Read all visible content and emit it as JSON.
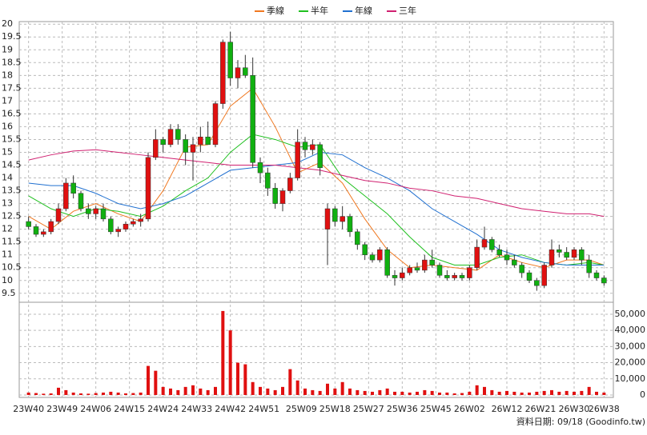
{
  "chart_data": [
    {
      "type": "candlestick",
      "x": [
        0,
        2,
        4,
        6,
        8,
        10,
        12,
        14,
        16,
        18,
        20,
        22,
        24,
        26,
        28,
        30,
        32,
        34,
        36,
        38,
        40,
        42,
        44,
        46,
        48,
        50,
        52,
        54,
        56,
        58,
        60,
        62,
        64,
        66,
        68,
        70,
        72,
        74,
        76,
        78,
        80,
        82,
        84,
        86,
        88,
        90,
        92,
        94,
        96,
        98,
        100,
        102,
        104,
        106,
        108,
        110,
        112,
        114,
        116,
        118,
        120,
        122,
        124,
        126,
        128,
        130,
        132,
        134,
        136,
        138,
        140,
        142,
        144,
        146,
        148,
        150,
        152,
        154
      ],
      "open": [
        12.3,
        12.1,
        11.8,
        11.9,
        12.3,
        12.8,
        13.8,
        13.4,
        12.8,
        12.6,
        12.8,
        12.4,
        11.9,
        12.0,
        12.2,
        12.3,
        12.4,
        14.8,
        15.5,
        15.3,
        15.9,
        15.5,
        15.0,
        15.3,
        15.6,
        15.3,
        16.9,
        19.3,
        17.9,
        18.3,
        18.0,
        14.6,
        14.2,
        13.6,
        13.0,
        13.5,
        14.0,
        15.4,
        15.1,
        15.3,
        12.0,
        12.8,
        12.3,
        12.5,
        11.9,
        11.4,
        11.0,
        10.8,
        11.2,
        10.2,
        10.1,
        10.3,
        10.5,
        10.4,
        10.8,
        10.6,
        10.2,
        10.1,
        10.2,
        10.1,
        10.5,
        11.3,
        11.6,
        11.2,
        11.0,
        10.8,
        10.6,
        10.3,
        10.0,
        9.8,
        10.6,
        11.2,
        11.1,
        10.9,
        11.2,
        10.8,
        10.3,
        10.1
      ],
      "high": [
        12.5,
        12.2,
        12.0,
        12.4,
        13.0,
        14.0,
        14.1,
        13.5,
        13.0,
        12.9,
        13.0,
        12.5,
        12.1,
        12.3,
        12.4,
        12.6,
        15.0,
        15.9,
        15.6,
        16.1,
        16.1,
        15.7,
        15.6,
        16.0,
        16.2,
        17.0,
        19.4,
        19.7,
        18.6,
        18.8,
        18.7,
        14.8,
        14.4,
        13.8,
        13.6,
        14.2,
        15.9,
        15.6,
        15.5,
        15.4,
        13.0,
        12.9,
        12.9,
        12.6,
        12.0,
        11.5,
        11.1,
        11.3,
        11.3,
        10.4,
        10.5,
        10.6,
        10.7,
        11.0,
        11.2,
        10.7,
        10.4,
        10.3,
        10.3,
        10.6,
        11.6,
        12.1,
        11.7,
        11.4,
        11.2,
        11.0,
        10.7,
        10.4,
        10.1,
        10.7,
        11.6,
        11.4,
        11.3,
        11.3,
        11.3,
        11.0,
        10.4,
        10.2
      ],
      "low": [
        12.0,
        11.7,
        11.7,
        11.8,
        12.2,
        12.7,
        13.2,
        12.7,
        12.4,
        12.4,
        12.3,
        11.8,
        11.7,
        11.9,
        12.1,
        12.1,
        12.3,
        14.7,
        15.0,
        15.2,
        15.3,
        14.5,
        13.9,
        15.0,
        15.4,
        15.2,
        16.7,
        17.6,
        17.5,
        17.9,
        14.4,
        13.8,
        13.3,
        12.8,
        12.7,
        13.4,
        13.9,
        14.8,
        14.9,
        14.1,
        10.6,
        12.1,
        12.0,
        11.7,
        11.2,
        10.8,
        10.7,
        10.7,
        10.1,
        9.8,
        10.0,
        10.2,
        10.3,
        10.3,
        10.5,
        10.1,
        10.0,
        10.0,
        10.0,
        10.0,
        10.4,
        11.2,
        11.1,
        10.9,
        10.6,
        10.5,
        10.1,
        9.9,
        9.6,
        9.7,
        10.5,
        10.9,
        10.8,
        10.8,
        10.6,
        10.1,
        10.0,
        9.8
      ],
      "close": [
        12.1,
        11.8,
        11.9,
        12.3,
        12.8,
        13.8,
        13.4,
        12.8,
        12.6,
        12.8,
        12.4,
        11.9,
        12.0,
        12.2,
        12.3,
        12.4,
        14.8,
        15.5,
        15.3,
        15.9,
        15.5,
        15.0,
        15.3,
        15.6,
        15.3,
        16.9,
        19.3,
        17.9,
        18.3,
        18.0,
        14.6,
        14.2,
        13.6,
        13.0,
        13.5,
        14.0,
        15.4,
        15.1,
        15.3,
        14.4,
        12.8,
        12.3,
        12.5,
        11.9,
        11.4,
        11.0,
        10.8,
        11.2,
        10.2,
        10.1,
        10.3,
        10.5,
        10.4,
        10.8,
        10.6,
        10.2,
        10.1,
        10.2,
        10.1,
        10.5,
        11.3,
        11.6,
        11.2,
        11.0,
        10.8,
        10.6,
        10.3,
        10.0,
        9.8,
        10.6,
        11.2,
        11.1,
        10.9,
        11.2,
        10.8,
        10.3,
        10.1,
        9.9
      ],
      "up_color": "#e01010",
      "down_color": "#10b010",
      "xlim": [
        -2.5,
        156.5
      ],
      "ylim": [
        9.15,
        20.1
      ],
      "yticks": [
        9.5,
        10,
        10.5,
        11,
        11.5,
        12,
        12.5,
        13,
        13.5,
        14,
        14.5,
        15,
        15.5,
        16,
        16.5,
        17,
        17.5,
        18,
        18.5,
        19,
        19.5,
        20
      ],
      "xticks": [
        {
          "value": 0,
          "label": "23W40"
        },
        {
          "value": 9,
          "label": "23W49"
        },
        {
          "value": 18,
          "label": "24W06"
        },
        {
          "value": 27,
          "label": "24W15"
        },
        {
          "value": 36,
          "label": "24W24"
        },
        {
          "value": 45,
          "label": "24W33"
        },
        {
          "value": 54,
          "label": "24W42"
        },
        {
          "value": 63,
          "label": "24W51"
        },
        {
          "value": 73,
          "label": "25W09"
        },
        {
          "value": 82,
          "label": "25W18"
        },
        {
          "value": 91,
          "label": "25W27"
        },
        {
          "value": 100,
          "label": "25W36"
        },
        {
          "value": 109,
          "label": "25W45"
        },
        {
          "value": 118,
          "label": "26W02"
        },
        {
          "value": 128,
          "label": "26W12"
        },
        {
          "value": 137,
          "label": "26W21"
        },
        {
          "value": 146,
          "label": "26W30"
        },
        {
          "value": 154,
          "label": "26W38"
        }
      ],
      "grid": true,
      "legend": "top",
      "series": [
        {
          "name": "季線",
          "color": "#f07820",
          "x": [
            0,
            6,
            12,
            18,
            24,
            30,
            36,
            42,
            48,
            54,
            60,
            66,
            72,
            78,
            84,
            90,
            96,
            102,
            108,
            114,
            120,
            126,
            132,
            138,
            144,
            150,
            154
          ],
          "values": [
            12.5,
            12.0,
            12.7,
            13.0,
            12.6,
            12.3,
            13.5,
            15.2,
            15.3,
            16.8,
            17.5,
            16.0,
            14.2,
            14.6,
            13.8,
            12.4,
            11.2,
            10.5,
            10.6,
            10.5,
            10.4,
            11.0,
            10.7,
            10.5,
            10.8,
            10.8,
            10.6
          ]
        },
        {
          "name": "半年",
          "color": "#20c020",
          "x": [
            0,
            6,
            12,
            18,
            24,
            30,
            36,
            42,
            48,
            54,
            60,
            66,
            72,
            78,
            84,
            90,
            96,
            102,
            108,
            114,
            120,
            126,
            132,
            138,
            144,
            150,
            154
          ],
          "values": [
            13.3,
            12.8,
            12.5,
            12.8,
            12.7,
            12.5,
            12.9,
            13.5,
            14.0,
            15.0,
            15.7,
            15.5,
            15.2,
            15.3,
            14.0,
            13.3,
            12.6,
            11.7,
            10.9,
            10.6,
            10.6,
            10.9,
            11.0,
            10.7,
            10.6,
            10.7,
            10.6
          ]
        },
        {
          "name": "年線",
          "color": "#2070d0",
          "x": [
            0,
            6,
            12,
            18,
            24,
            30,
            36,
            42,
            48,
            54,
            60,
            66,
            72,
            78,
            84,
            90,
            96,
            102,
            108,
            114,
            120,
            126,
            132,
            138,
            144,
            150,
            154
          ],
          "values": [
            13.8,
            13.7,
            13.7,
            13.4,
            13.0,
            12.8,
            13.0,
            13.3,
            13.8,
            14.3,
            14.4,
            14.5,
            14.6,
            15.0,
            14.9,
            14.4,
            14.0,
            13.5,
            12.8,
            12.3,
            11.8,
            11.2,
            10.9,
            10.7,
            10.6,
            10.6,
            10.6
          ]
        },
        {
          "name": "三年",
          "color": "#d02070",
          "x": [
            0,
            6,
            12,
            18,
            24,
            30,
            36,
            42,
            48,
            54,
            60,
            66,
            72,
            78,
            84,
            90,
            96,
            102,
            108,
            114,
            120,
            126,
            132,
            138,
            144,
            150,
            154
          ],
          "values": [
            14.7,
            14.9,
            15.05,
            15.1,
            15.0,
            14.9,
            14.8,
            14.7,
            14.6,
            14.5,
            14.5,
            14.5,
            14.4,
            14.3,
            14.1,
            13.9,
            13.8,
            13.6,
            13.5,
            13.3,
            13.2,
            13.0,
            12.8,
            12.7,
            12.6,
            12.6,
            12.5
          ]
        }
      ]
    },
    {
      "type": "bar",
      "x": [
        0,
        2,
        4,
        6,
        8,
        10,
        12,
        14,
        16,
        18,
        20,
        22,
        24,
        26,
        28,
        30,
        32,
        34,
        36,
        38,
        40,
        42,
        44,
        46,
        48,
        50,
        52,
        54,
        56,
        58,
        60,
        62,
        64,
        66,
        68,
        70,
        72,
        74,
        76,
        78,
        80,
        82,
        84,
        86,
        88,
        90,
        92,
        94,
        96,
        98,
        100,
        102,
        104,
        106,
        108,
        110,
        112,
        114,
        116,
        118,
        120,
        122,
        124,
        126,
        128,
        130,
        132,
        134,
        136,
        138,
        140,
        142,
        144,
        146,
        148,
        150,
        152,
        154
      ],
      "values": [
        1500,
        1200,
        800,
        1000,
        4500,
        3000,
        1500,
        1000,
        800,
        1200,
        1500,
        2000,
        1500,
        1000,
        1200,
        1500,
        18000,
        15000,
        5000,
        4000,
        3000,
        5000,
        6000,
        4000,
        3000,
        5000,
        52000,
        40000,
        20000,
        19000,
        8000,
        5000,
        4000,
        3000,
        5000,
        16000,
        9000,
        4000,
        3000,
        2500,
        7000,
        4000,
        8000,
        4000,
        3000,
        2500,
        2000,
        3000,
        4000,
        2000,
        2000,
        1500,
        2000,
        3000,
        2500,
        1500,
        1500,
        1000,
        1200,
        2000,
        6000,
        5000,
        3000,
        2000,
        2500,
        2000,
        1500,
        1500,
        2000,
        2500,
        3000,
        2000,
        2500,
        2000,
        2500,
        5000,
        2000,
        1500
      ],
      "color": "#e01010",
      "xlim": [
        -2.5,
        156.5
      ],
      "ylim": [
        -1500,
        57400
      ],
      "yticks": [
        0,
        {
          "value": 10000,
          "label": "10,000"
        },
        {
          "value": 20000,
          "label": "20,000"
        },
        {
          "value": 30000,
          "label": "30,000"
        },
        {
          "value": 40000,
          "label": "40,000"
        },
        {
          "value": 50000,
          "label": "50,000"
        }
      ],
      "grid": true,
      "source": "資料日期: 09/18  (Goodinfo.tw)"
    }
  ]
}
